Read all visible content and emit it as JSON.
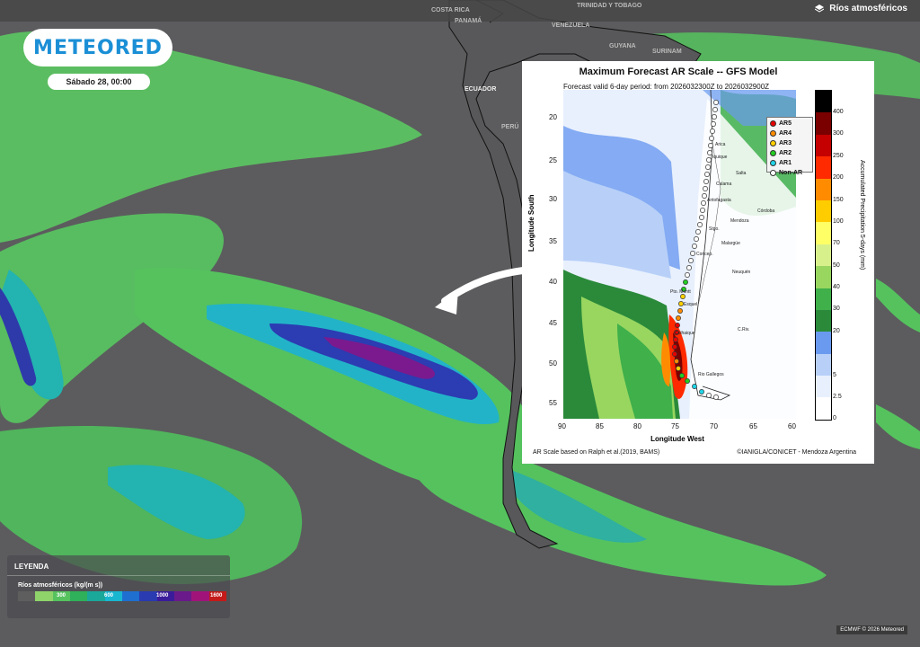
{
  "header": {
    "layer_title": "Ríos atmosféricos"
  },
  "logo": {
    "text": "METEORED"
  },
  "date_label": "Sábado 28, 00:00",
  "geo_labels": [
    {
      "text": "COSTA RICA",
      "tone": "light"
    },
    {
      "text": "PANAMÁ",
      "tone": "light"
    },
    {
      "text": "TRINIDAD Y TOBAGO",
      "tone": "light"
    },
    {
      "text": "VENEZUELA",
      "tone": "light"
    },
    {
      "text": "GUYANA",
      "tone": "light"
    },
    {
      "text": "SURINAM",
      "tone": "light"
    },
    {
      "text": "ECUADOR",
      "tone": "dark"
    },
    {
      "text": "PERÚ",
      "tone": "light"
    }
  ],
  "inset": {
    "title": "Maximum Forecast AR Scale -- GFS Model",
    "subtitle": "Forecast valid 6-day period: from 2026032300Z to 2026032900Z",
    "x_label": "Longitude West",
    "y_label": "Longitude South",
    "x_ticks": [
      "90",
      "85",
      "80",
      "75",
      "70",
      "65",
      "60"
    ],
    "y_ticks": [
      "20",
      "25",
      "30",
      "35",
      "40",
      "45",
      "50",
      "55"
    ],
    "colorbar_label": "Accumulated Precipitation 5-days (mm)",
    "colorbar_ticks": [
      "400",
      "300",
      "250",
      "200",
      "150",
      "100",
      "70",
      "50",
      "40",
      "30",
      "20",
      "5",
      "2.5",
      "0"
    ],
    "colorbar_colors": [
      "#000000",
      "#7a0000",
      "#c40000",
      "#ff2a00",
      "#ff8c00",
      "#ffcc00",
      "#ffff66",
      "#d8f08c",
      "#98d660",
      "#3fb04a",
      "#2a8a3a",
      "#6a9af0",
      "#b8d0f8",
      "#e8f0fd",
      "#ffffff"
    ],
    "legend": [
      {
        "label": "AR5",
        "color": "#e60000"
      },
      {
        "label": "AR4",
        "color": "#ff8c00"
      },
      {
        "label": "AR3",
        "color": "#ffd000"
      },
      {
        "label": "AR2",
        "color": "#22cc22"
      },
      {
        "label": "AR1",
        "color": "#22d4e6"
      },
      {
        "label": "Non-AR",
        "color": "#ffffff"
      }
    ],
    "cities": [
      "Arica",
      "Iquique",
      "Salta",
      "Calama",
      "Antofagasta",
      "Córdoba",
      "Mendoza",
      "Stgo.",
      "Malargüe",
      "Concep.",
      "Neuquén",
      "Esquel",
      "Pto. Montt",
      "Coihaique",
      "C.Riv.",
      "Rio Gallegos"
    ],
    "footer_left": "AR Scale based on Ralph et al.(2019, BAMS)",
    "footer_right": "©IANIGLA/CONICET - Mendoza Argentina"
  },
  "legend": {
    "title": "LEYENDA",
    "subtitle": "Ríos atmosféricos (kg/(m s))",
    "values": [
      "300",
      "600",
      "1000",
      "1600"
    ],
    "colors": [
      "#5e5e5e",
      "#8fd46a",
      "#55c25e",
      "#2fb05a",
      "#1aa89a",
      "#19b6d0",
      "#1f6fd0",
      "#2a3ab0",
      "#3a1c9a",
      "#6a1a8a",
      "#a0147a",
      "#c41a1a"
    ]
  },
  "credit": "ECMWF © 2026 Meteored"
}
